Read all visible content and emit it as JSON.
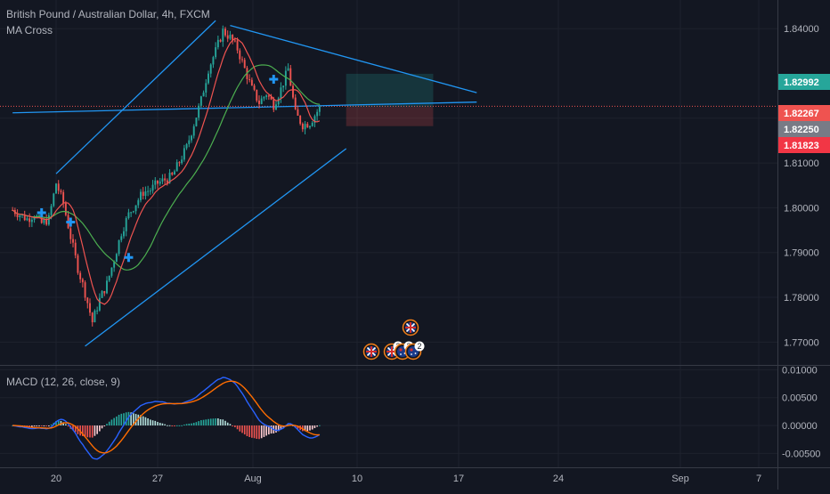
{
  "header": {
    "symbol_title": "British Pound / Australian Dollar, 4h, FXCM",
    "indicator": "MA Cross",
    "macd_label": "MACD (12, 26, close, 9)"
  },
  "colors": {
    "background": "#131722",
    "grid": "#1e222d",
    "candle_up": "#26a69a",
    "candle_down": "#ef5350",
    "ma_fast": "#ef5350",
    "ma_slow": "#4caf50",
    "trendline": "#2196f3",
    "macd_line": "#2962ff",
    "signal_line": "#ff6d00",
    "badge_target": "#26a69a",
    "badge_current": "#ef5350",
    "badge_last": "#787b86",
    "badge_stop": "#f23645"
  },
  "chart_data": [
    {
      "type": "candlestick",
      "xaxis_ticks": [
        "20",
        "27",
        "Aug",
        "10",
        "17",
        "24",
        "Sep",
        "7"
      ],
      "yaxis_ticks": [
        "1.84000",
        "1.82000",
        "1.81000",
        "1.80000",
        "1.79000",
        "1.78000",
        "1.77000"
      ],
      "ylim": [
        1.7649,
        1.8464
      ],
      "price_labels": [
        "1.82992",
        "1.82267",
        "1.82250",
        "1.81823"
      ],
      "current_price": 1.82267,
      "position": {
        "entry": 1.8225,
        "target": 1.82992,
        "stop": 1.81823
      },
      "cross_markers": [
        {
          "x": "Jul 19",
          "y": 1.7989
        },
        {
          "x": "Jul 21",
          "y": 1.7968
        },
        {
          "x": "Jul 25",
          "y": 1.7889
        },
        {
          "x": "Aug 4",
          "y": 1.8287
        }
      ],
      "channel": {
        "upper": [
          {
            "x": "Jul 20",
            "y": 1.8076
          },
          {
            "x": "Jul 31",
            "y": 1.8418
          }
        ],
        "lower": [
          {
            "x": "Jul 22",
            "y": 1.7691
          },
          {
            "x": "Aug 9",
            "y": 1.8132
          }
        ]
      },
      "trendlines": [
        [
          {
            "x": "Aug 1",
            "y": 1.8407
          },
          {
            "x": "Aug 18",
            "y": 1.8257
          }
        ],
        [
          {
            "x": "Jul 17",
            "y": 1.8212
          },
          {
            "x": "Aug 18",
            "y": 1.8236
          }
        ]
      ],
      "events": [
        {
          "icon": "uk-flag-icon",
          "count": ""
        },
        {
          "icon": "uk-flag-icon",
          "count": "2"
        },
        {
          "icon": "au-flag-icon",
          "count": "2"
        },
        {
          "icon": "au-flag-icon",
          "count": "2"
        },
        {
          "icon": "uk-flag-icon",
          "count": ""
        }
      ],
      "ma_fast_name": "",
      "ma_slow_name": ""
    },
    {
      "type": "macd",
      "title": "MACD (12, 26, close, 9)",
      "yaxis_ticks": [
        "0.01000",
        "0.00500",
        "0.00000",
        "-0.00500"
      ],
      "ylim": [
        -0.0075,
        0.0107
      ]
    }
  ]
}
